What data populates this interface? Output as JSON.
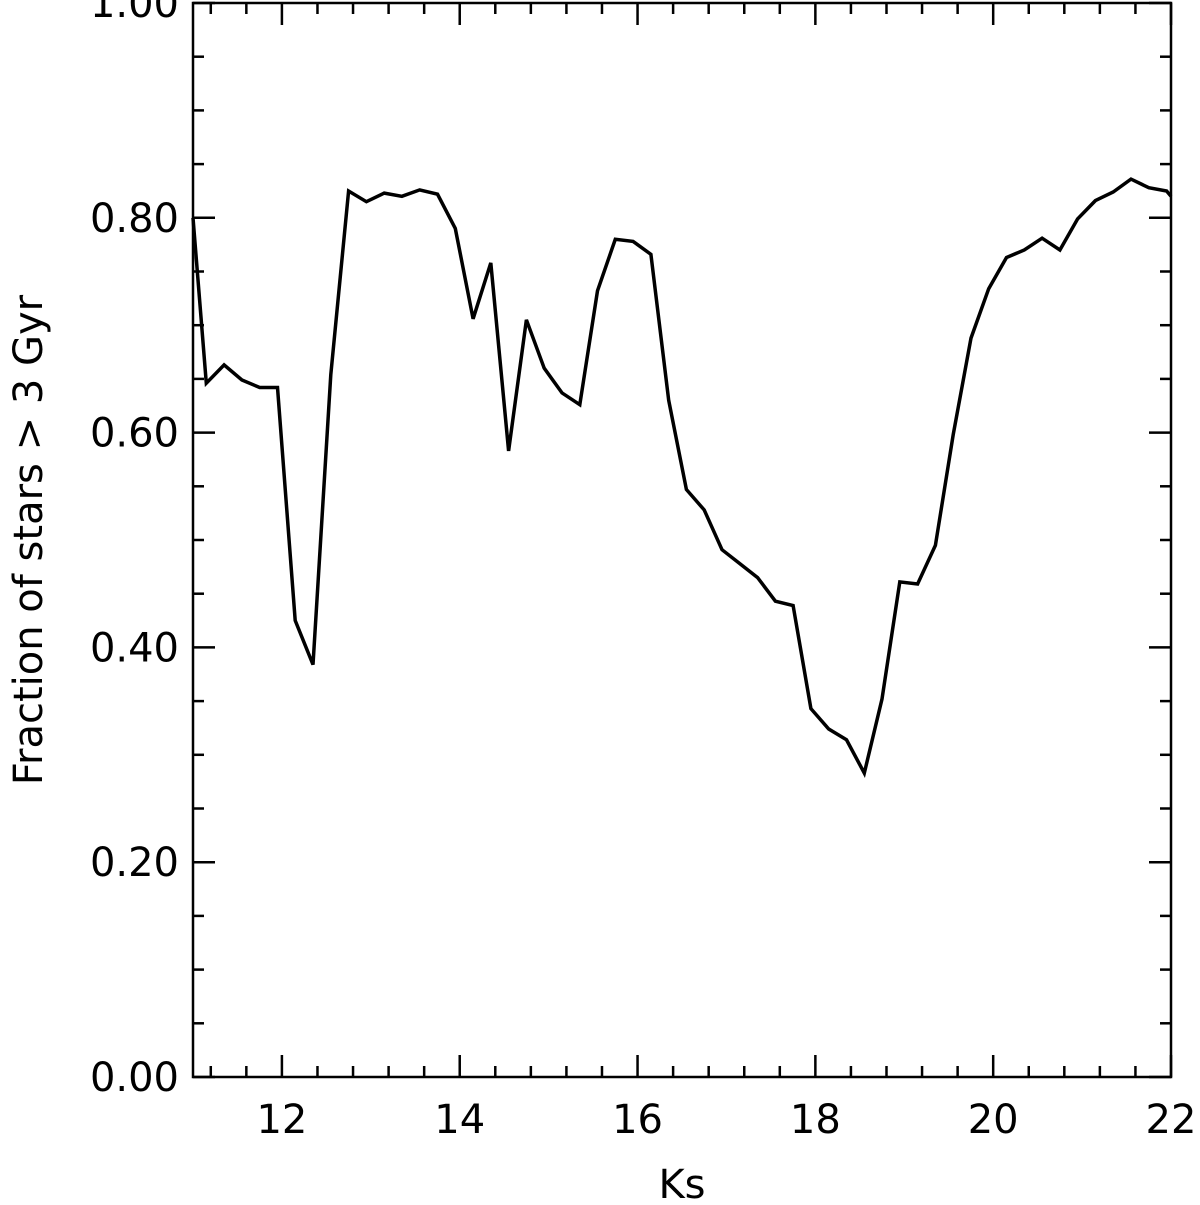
{
  "chart_data": {
    "type": "line",
    "title": "",
    "xlabel": "Ks",
    "ylabel": "Fraction of stars > 3 Gyr",
    "xlim": [
      11,
      22
    ],
    "ylim": [
      0.0,
      1.0
    ],
    "grid": false,
    "x_ticks": [
      {
        "value": 12,
        "label": "12"
      },
      {
        "value": 14,
        "label": "14"
      },
      {
        "value": 16,
        "label": "16"
      },
      {
        "value": 18,
        "label": "18"
      },
      {
        "value": 20,
        "label": "20"
      },
      {
        "value": 22,
        "label": "22"
      }
    ],
    "x_minor_step": 0.4,
    "y_ticks": [
      {
        "value": 0.0,
        "label": "0.00"
      },
      {
        "value": 0.2,
        "label": "0.20"
      },
      {
        "value": 0.4,
        "label": "0.40"
      },
      {
        "value": 0.6,
        "label": "0.60"
      },
      {
        "value": 0.8,
        "label": "0.80"
      },
      {
        "value": 1.0,
        "label": "1.00"
      }
    ],
    "y_minor_step": 0.05,
    "series": [
      {
        "x": [
          11.0,
          11.15,
          11.35,
          11.55,
          11.75,
          11.95,
          12.15,
          12.35,
          12.55,
          12.75,
          12.95,
          13.15,
          13.35,
          13.55,
          13.75,
          13.95,
          14.15,
          14.35,
          14.55,
          14.75,
          14.95,
          15.15,
          15.35,
          15.55,
          15.75,
          15.95,
          16.15,
          16.35,
          16.55,
          16.75,
          16.95,
          17.15,
          17.35,
          17.55,
          17.75,
          17.95,
          18.15,
          18.35,
          18.55,
          18.75,
          18.95,
          19.15,
          19.35,
          19.55,
          19.75,
          19.95,
          20.15,
          20.35,
          20.55,
          20.75,
          20.95,
          21.15,
          21.35,
          21.55,
          21.75,
          21.95,
          22.0
        ],
        "y": [
          0.8,
          0.646,
          0.663,
          0.649,
          0.642,
          0.642,
          0.425,
          0.384,
          0.654,
          0.825,
          0.815,
          0.823,
          0.82,
          0.826,
          0.822,
          0.79,
          0.706,
          0.758,
          0.583,
          0.705,
          0.66,
          0.637,
          0.626,
          0.732,
          0.78,
          0.778,
          0.766,
          0.63,
          0.547,
          0.528,
          0.491,
          0.478,
          0.465,
          0.443,
          0.439,
          0.343,
          0.324,
          0.314,
          0.283,
          0.352,
          0.461,
          0.459,
          0.495,
          0.598,
          0.688,
          0.734,
          0.763,
          0.77,
          0.781,
          0.77,
          0.799,
          0.816,
          0.824,
          0.836,
          0.828,
          0.825,
          0.82
        ]
      }
    ]
  }
}
